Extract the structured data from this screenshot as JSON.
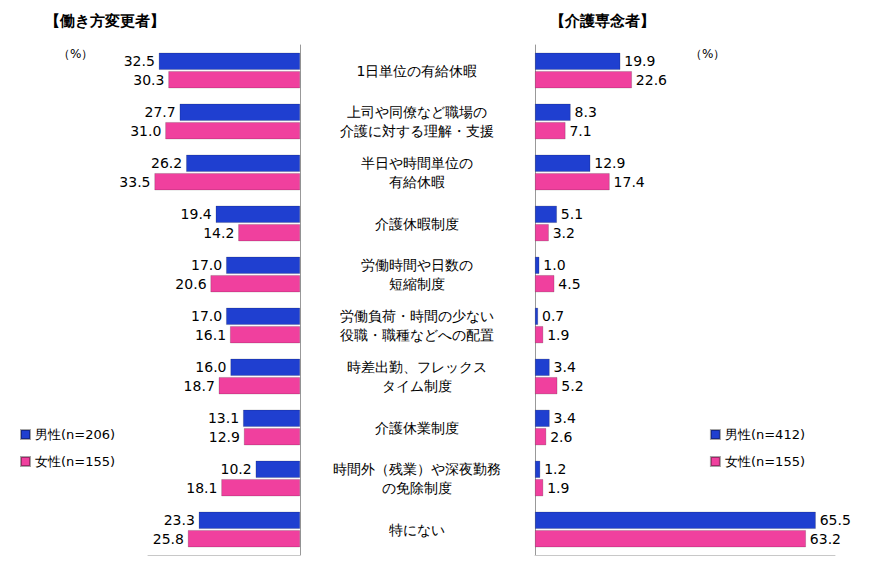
{
  "chart_data": [
    {
      "type": "bar",
      "title": "【働き方変更者】",
      "orientation": "horizontal",
      "categories": [
        "1日単位の有給休暇",
        "上司や同僚など職場の\n介護に対する理解・支援",
        "半日や時間単位の\n有給休暇",
        "介護休暇制度",
        "労働時間や日数の\n短縮制度",
        "労働負荷・時間の少ない\n役職・職種などへの配置",
        "時差出勤、フレックス\nタイム制度",
        "介護休業制度",
        "時間外（残業）や深夜勤務\nの免除制度",
        "特にない"
      ],
      "series": [
        {
          "name": "男性(n=206)",
          "color": "#1f3fd0",
          "values": [
            32.5,
            27.7,
            26.2,
            19.4,
            17.0,
            17.0,
            16.0,
            13.1,
            10.2,
            23.3
          ],
          "value_labels": [
            "32.5",
            "27.7",
            "26.2",
            "19.4",
            "17.0",
            "17.0",
            "16.0",
            "13.1",
            "10.2",
            "23.3"
          ]
        },
        {
          "name": "女性(n=155)",
          "color": "#f0409e",
          "values": [
            30.3,
            31.0,
            33.5,
            14.2,
            20.6,
            16.1,
            18.7,
            12.9,
            18.1,
            25.8
          ],
          "value_labels": [
            "30.3",
            "31.0",
            "33.5",
            "14.2",
            "20.6",
            "16.1",
            "18.7",
            "12.9",
            "18.1",
            "25.8"
          ]
        }
      ],
      "xlim": [
        0,
        35
      ],
      "tick_labels": false,
      "grid": false,
      "data_labels": true,
      "legend": "lower-left",
      "annotations": [
        "（%）"
      ]
    },
    {
      "type": "bar",
      "title": "【介護専念者】",
      "orientation": "horizontal",
      "categories": [
        "1日単位の有給休暇",
        "上司や同僚など職場の\n介護に対する理解・支援",
        "半日や時間単位の\n有給休暇",
        "介護休暇制度",
        "労働時間や日数の\n短縮制度",
        "労働負荷・時間の少ない\n役職・職種などへの配置",
        "時差出勤、フレックス\nタイム制度",
        "介護休業制度",
        "時間外（残業）や深夜勤務\nの免除制度",
        "特にない"
      ],
      "series": [
        {
          "name": "男性(n=412)",
          "color": "#1f3fd0",
          "values": [
            19.9,
            8.3,
            12.9,
            5.1,
            1.0,
            0.7,
            3.4,
            3.4,
            1.2,
            65.5
          ],
          "value_labels": [
            "19.9",
            "8.3",
            "12.9",
            "5.1",
            "1.0",
            "0.7",
            "3.4",
            "3.4",
            "1.2",
            "65.5"
          ]
        },
        {
          "name": "女性(n=155)",
          "color": "#f0409e",
          "values": [
            22.6,
            7.1,
            17.4,
            3.2,
            4.5,
            1.9,
            5.2,
            2.6,
            1.9,
            63.2
          ],
          "value_labels": [
            "22.6",
            "7.1",
            "17.4",
            "3.2",
            "4.5",
            "1.9",
            "5.2",
            "2.6",
            "1.9",
            "63.2"
          ]
        }
      ],
      "xlim": [
        0,
        70
      ],
      "tick_labels": false,
      "grid": false,
      "data_labels": true,
      "legend": "lower-right",
      "annotations": [
        "（%）"
      ]
    }
  ]
}
